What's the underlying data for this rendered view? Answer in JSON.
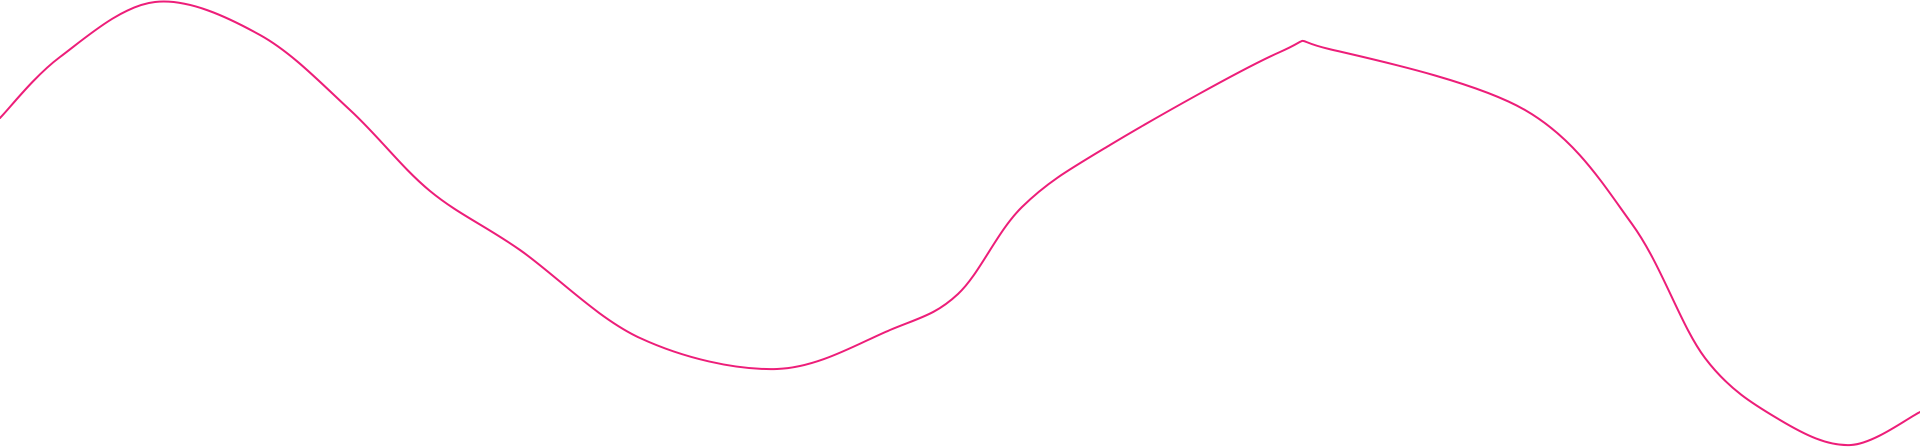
{
  "decoration": {
    "stroke_color": "#ed1e79",
    "background_color": "#ffffff"
  }
}
